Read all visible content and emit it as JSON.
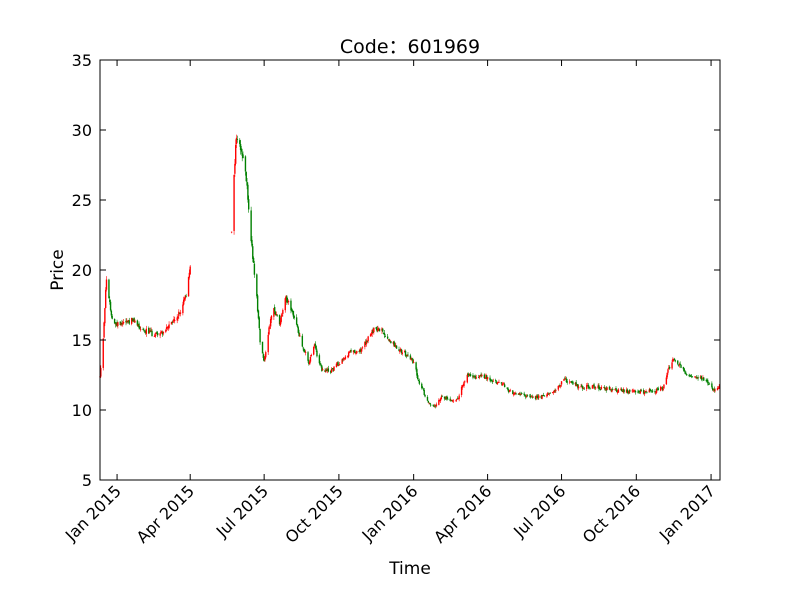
{
  "chart_data": {
    "type": "candlestick",
    "title": "Code：601969",
    "xlabel": "Time",
    "ylabel": "Price",
    "ylim": [
      5,
      35
    ],
    "yticks": [
      5,
      10,
      15,
      20,
      25,
      30,
      35
    ],
    "xlim": [
      "2014-12-11",
      "2017-01-12"
    ],
    "xticks": [
      {
        "date": "2015-01-01",
        "label": "Jan 2015"
      },
      {
        "date": "2015-04-01",
        "label": "Apr 2015"
      },
      {
        "date": "2015-07-01",
        "label": "Jul 2015"
      },
      {
        "date": "2015-10-01",
        "label": "Oct 2015"
      },
      {
        "date": "2016-01-01",
        "label": "Jan 2016"
      },
      {
        "date": "2016-04-01",
        "label": "Apr 2016"
      },
      {
        "date": "2016-07-01",
        "label": "Jul 2016"
      },
      {
        "date": "2016-10-01",
        "label": "Oct 2016"
      },
      {
        "date": "2017-01-01",
        "label": "Jan 2017"
      }
    ],
    "grid": false,
    "up_color": "#ff0000",
    "down_color": "#008000",
    "price_path": [
      [
        "2014-12-11",
        12.4
      ],
      [
        "2014-12-15",
        15.2
      ],
      [
        "2014-12-19",
        19.5
      ],
      [
        "2014-12-24",
        17.0
      ],
      [
        "2014-12-30",
        16.1
      ],
      [
        "2015-01-08",
        16.3
      ],
      [
        "2015-01-20",
        16.4
      ],
      [
        "2015-02-01",
        15.8
      ],
      [
        "2015-02-15",
        15.4
      ],
      [
        "2015-02-28",
        15.6
      ],
      [
        "2015-03-10",
        16.2
      ],
      [
        "2015-03-20",
        17.0
      ],
      [
        "2015-03-28",
        18.5
      ],
      [
        "2015-04-02",
        20.5
      ],
      [
        "2015-05-22",
        22.8
      ],
      [
        "2015-05-25",
        27.0
      ],
      [
        "2015-05-28",
        29.6
      ],
      [
        "2015-06-03",
        28.5
      ],
      [
        "2015-06-08",
        27.0
      ],
      [
        "2015-06-12",
        24.5
      ],
      [
        "2015-06-16",
        21.5
      ],
      [
        "2015-06-22",
        18.0
      ],
      [
        "2015-06-26",
        15.0
      ],
      [
        "2015-07-01",
        13.5
      ],
      [
        "2015-07-06",
        15.5
      ],
      [
        "2015-07-12",
        17.2
      ],
      [
        "2015-07-20",
        16.2
      ],
      [
        "2015-07-28",
        18.0
      ],
      [
        "2015-08-04",
        17.2
      ],
      [
        "2015-08-12",
        15.6
      ],
      [
        "2015-08-18",
        14.5
      ],
      [
        "2015-08-25",
        13.3
      ],
      [
        "2015-09-01",
        14.6
      ],
      [
        "2015-09-10",
        12.8
      ],
      [
        "2015-09-22",
        12.8
      ],
      [
        "2015-10-08",
        13.8
      ],
      [
        "2015-10-18",
        14.2
      ],
      [
        "2015-10-28",
        14.2
      ],
      [
        "2015-11-05",
        15.0
      ],
      [
        "2015-11-14",
        15.8
      ],
      [
        "2015-11-22",
        15.7
      ],
      [
        "2015-12-02",
        15.0
      ],
      [
        "2015-12-12",
        14.5
      ],
      [
        "2015-12-22",
        14.0
      ],
      [
        "2016-01-02",
        13.4
      ],
      [
        "2016-01-07",
        12.0
      ],
      [
        "2016-01-14",
        11.2
      ],
      [
        "2016-01-20",
        10.5
      ],
      [
        "2016-01-26",
        10.2
      ],
      [
        "2016-02-04",
        11.0
      ],
      [
        "2016-02-16",
        10.7
      ],
      [
        "2016-02-24",
        10.8
      ],
      [
        "2016-03-02",
        11.8
      ],
      [
        "2016-03-08",
        12.5
      ],
      [
        "2016-03-18",
        12.3
      ],
      [
        "2016-03-30",
        12.4
      ],
      [
        "2016-04-10",
        12.0
      ],
      [
        "2016-04-20",
        11.8
      ],
      [
        "2016-05-01",
        11.2
      ],
      [
        "2016-05-15",
        11.0
      ],
      [
        "2016-05-30",
        10.9
      ],
      [
        "2016-06-12",
        11.0
      ],
      [
        "2016-06-24",
        11.5
      ],
      [
        "2016-07-05",
        12.2
      ],
      [
        "2016-07-15",
        11.9
      ],
      [
        "2016-07-25",
        11.6
      ],
      [
        "2016-08-10",
        11.7
      ],
      [
        "2016-08-25",
        11.5
      ],
      [
        "2016-09-10",
        11.4
      ],
      [
        "2016-09-25",
        11.3
      ],
      [
        "2016-10-10",
        11.3
      ],
      [
        "2016-10-24",
        11.4
      ],
      [
        "2016-11-03",
        11.6
      ],
      [
        "2016-11-10",
        13.0
      ],
      [
        "2016-11-16",
        13.6
      ],
      [
        "2016-11-24",
        13.2
      ],
      [
        "2016-12-02",
        12.6
      ],
      [
        "2016-12-12",
        12.3
      ],
      [
        "2016-12-22",
        12.2
      ],
      [
        "2016-12-30",
        11.8
      ],
      [
        "2017-01-04",
        11.4
      ],
      [
        "2017-01-12",
        11.6
      ]
    ]
  }
}
